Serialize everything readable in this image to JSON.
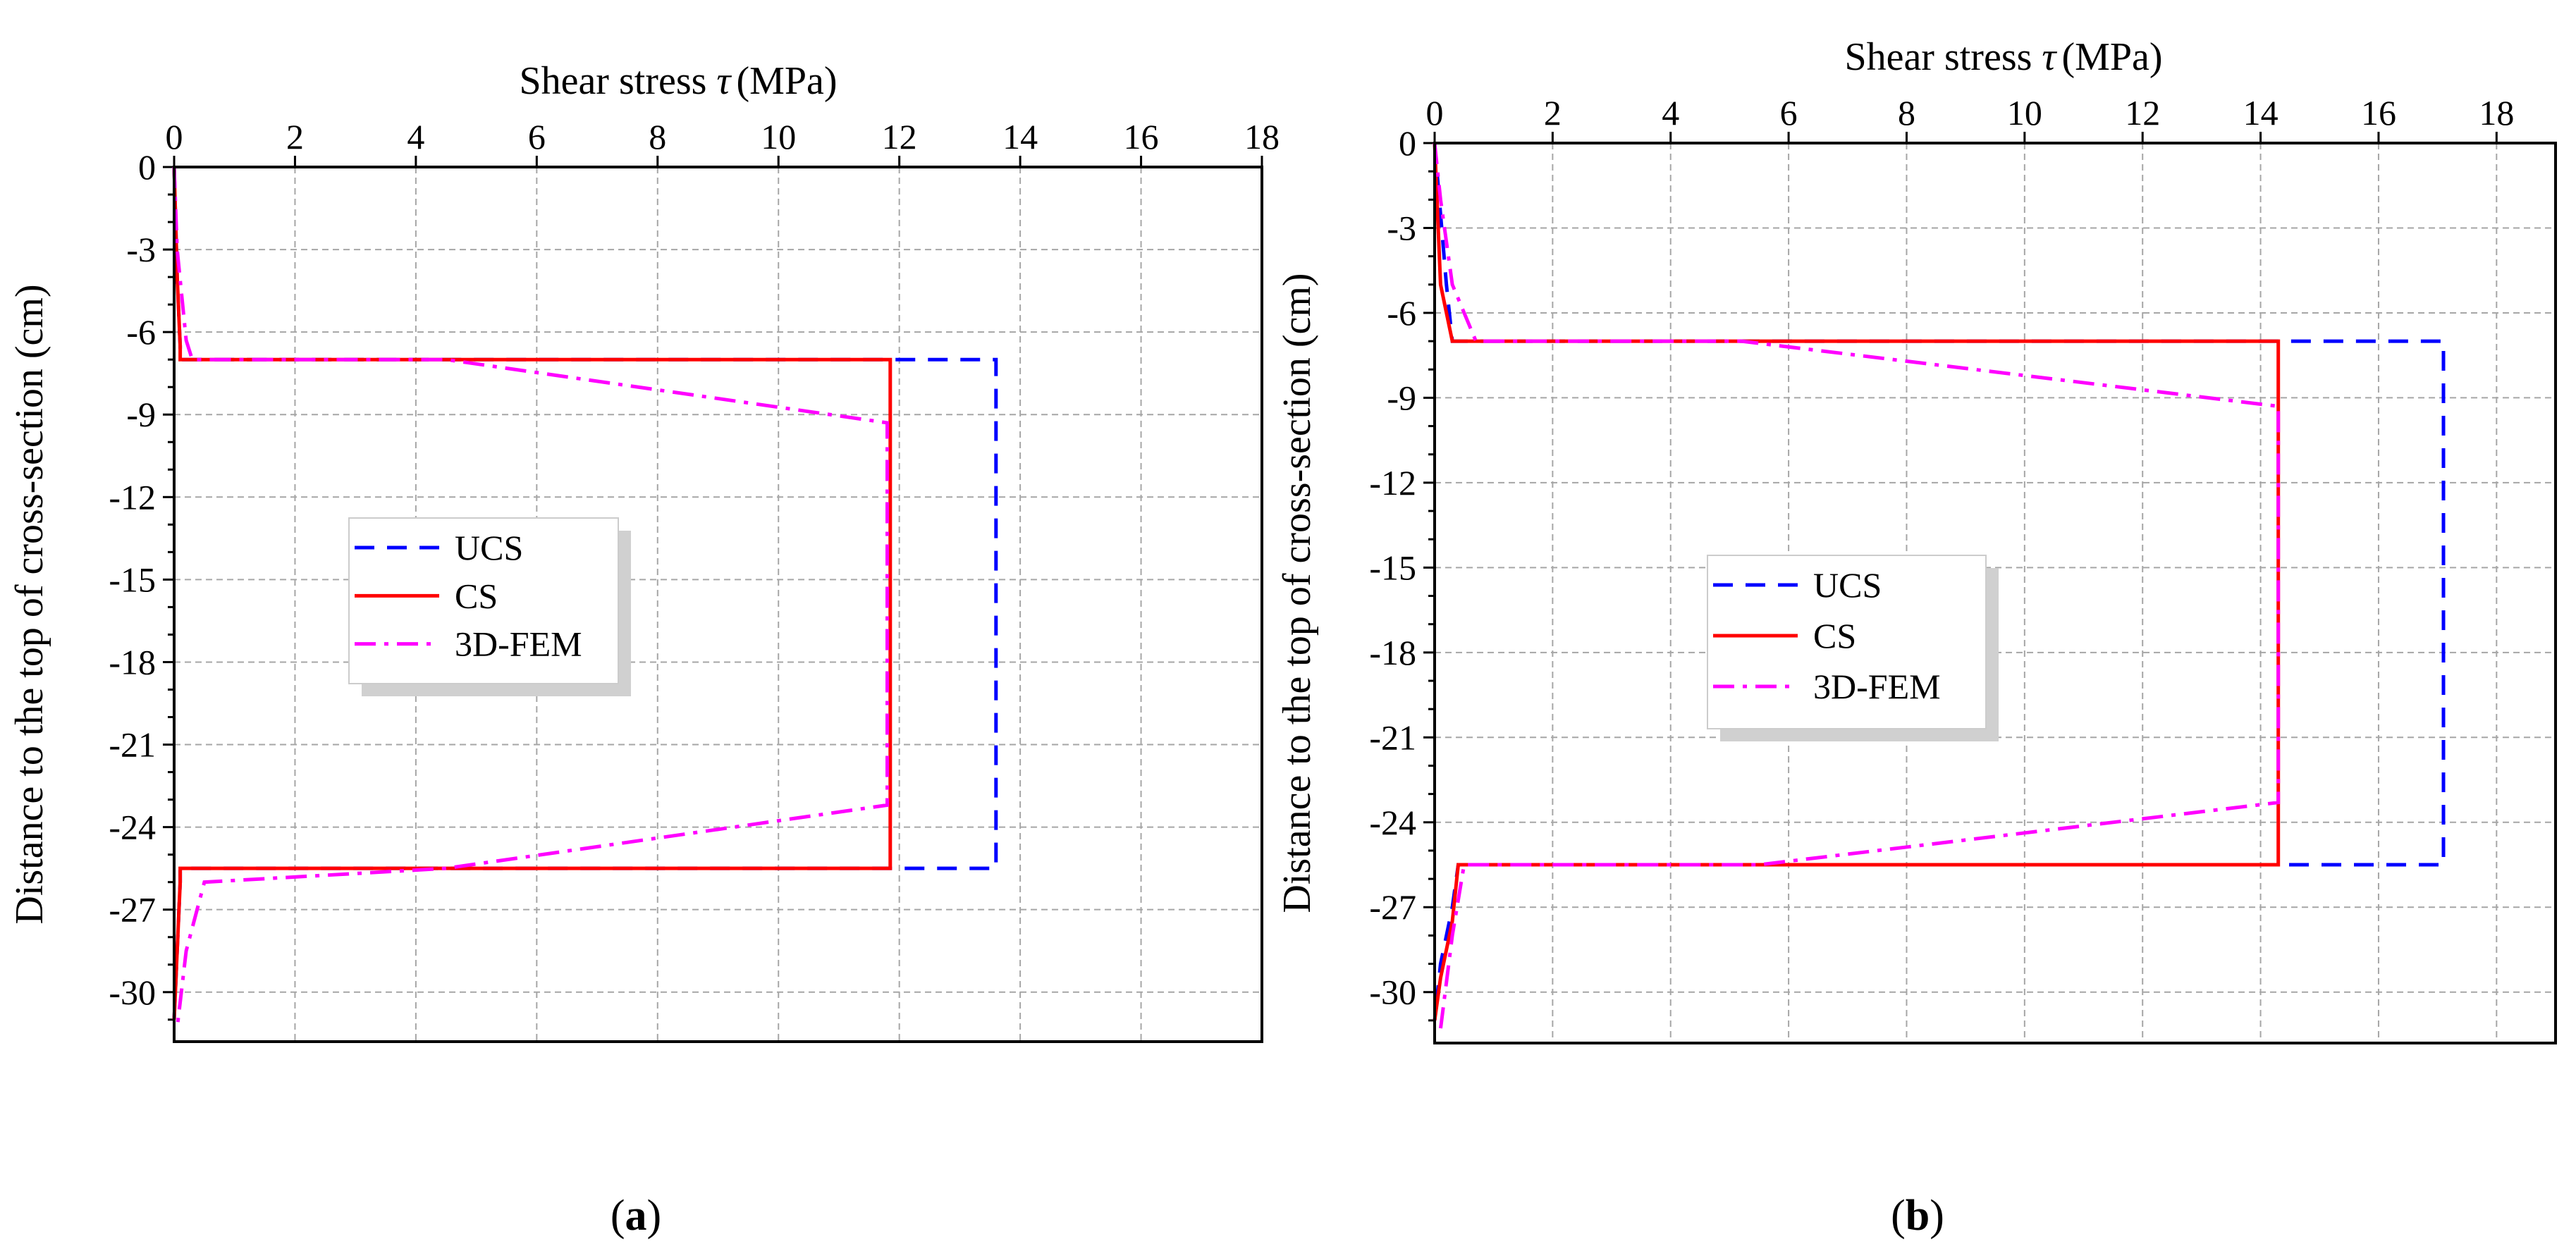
{
  "figure": {
    "colors": {
      "UCS": "#0000ff",
      "CS": "#ff0000",
      "3D-FEM": "#ff00ff",
      "grid": "#a6a6a6",
      "axis": "#000000",
      "legend_shadow": "#d0d0d0"
    }
  },
  "chart_data": [
    {
      "type": "line",
      "panel_label": "a",
      "title": "",
      "xlabel": "Shear stress",
      "xlabel_symbol": "τ",
      "xlabel_unit": "(MPa)",
      "ylabel": "Distance to the top of cross-section (cm)",
      "xlim": [
        0,
        18
      ],
      "ylim": [
        -31.8,
        0
      ],
      "xticks": [
        0,
        2,
        4,
        6,
        8,
        10,
        12,
        14,
        16,
        18
      ],
      "xtick_labels": [
        "0",
        "2",
        "4",
        "6",
        "8",
        "10",
        "12",
        "14",
        "16",
        "18"
      ],
      "yticks": [
        0,
        -3,
        -6,
        -9,
        -12,
        -15,
        -18,
        -21,
        -24,
        -27,
        -30
      ],
      "ytick_labels": [
        "0",
        "-3",
        "-6",
        "-9",
        "-12",
        "-15",
        "-18",
        "-21",
        "-24",
        "-27",
        "-30"
      ],
      "grid": true,
      "x_axis_position": "top",
      "legend": [
        "UCS",
        "CS",
        "3D-FEM"
      ],
      "legend_position": "center-left",
      "series": [
        {
          "name": "UCS",
          "style": "dashed",
          "x": [
            0,
            0.05,
            0.1,
            0.1,
            13.6,
            13.6,
            0.1,
            0.1,
            0.05,
            0
          ],
          "y": [
            0,
            -4,
            -6.5,
            -7,
            -7,
            -25.5,
            -25.5,
            -26,
            -28.5,
            -31
          ]
        },
        {
          "name": "CS",
          "style": "solid",
          "x": [
            0,
            0.05,
            0.1,
            0.1,
            11.85,
            11.85,
            0.1,
            0.1,
            0.05,
            0
          ],
          "y": [
            0,
            -4,
            -6.5,
            -7,
            -7,
            -25.5,
            -25.5,
            -26,
            -28.5,
            -31
          ]
        },
        {
          "name": "3D-FEM",
          "style": "dashdot",
          "x": [
            0,
            0.05,
            0.2,
            0.3,
            4.5,
            11.8,
            11.8,
            11.8,
            4.5,
            0.5,
            0.2,
            0.05
          ],
          "y": [
            0,
            -3,
            -6.3,
            -7,
            -7,
            -9.3,
            -16.4,
            -23.2,
            -25.5,
            -26,
            -28.5,
            -31.3
          ]
        }
      ]
    },
    {
      "type": "line",
      "panel_label": "b",
      "title": "",
      "xlabel": "Shear stress",
      "xlabel_symbol": "τ",
      "xlabel_unit": "(MPa)",
      "ylabel": "Distance to the top of cross-section (cm)",
      "xlim": [
        0,
        19
      ],
      "ylim": [
        -31.8,
        0
      ],
      "xticks": [
        0,
        2,
        4,
        6,
        8,
        10,
        12,
        14,
        16,
        18
      ],
      "xtick_labels": [
        "0",
        "2",
        "4",
        "6",
        "8",
        "10",
        "12",
        "14",
        "16",
        "18"
      ],
      "yticks": [
        0,
        -3,
        -6,
        -9,
        -12,
        -15,
        -18,
        -21,
        -24,
        -27,
        -30
      ],
      "ytick_labels": [
        "0",
        "-3",
        "-6",
        "-9",
        "-12",
        "-15",
        "-18",
        "-21",
        "-24",
        "-27",
        "-30"
      ],
      "grid": true,
      "x_axis_position": "top",
      "legend": [
        "UCS",
        "CS",
        "3D-FEM"
      ],
      "legend_position": "center-left",
      "series": [
        {
          "name": "UCS",
          "style": "dashed",
          "x": [
            0,
            0.2,
            0.3,
            17.1,
            17.1,
            0.4,
            0.3,
            0.1,
            0
          ],
          "y": [
            0,
            -5,
            -7,
            -7,
            -25.5,
            -25.5,
            -27,
            -29,
            -31
          ]
        },
        {
          "name": "CS",
          "style": "solid",
          "x": [
            0,
            0.1,
            0.3,
            14.3,
            14.3,
            0.4,
            0.3,
            0.1,
            0
          ],
          "y": [
            0,
            -5,
            -7,
            -7,
            -25.5,
            -25.5,
            -27.5,
            -29.5,
            -31
          ]
        },
        {
          "name": "3D-FEM",
          "style": "dashdot",
          "x": [
            0,
            0.1,
            0.3,
            0.7,
            5.2,
            14.3,
            14.3,
            14.3,
            5.5,
            0.5,
            0.3,
            0.1
          ],
          "y": [
            0,
            -2,
            -5,
            -7,
            -7,
            -9.3,
            -16.4,
            -23.3,
            -25.5,
            -25.5,
            -28,
            -31.3
          ]
        }
      ]
    }
  ]
}
